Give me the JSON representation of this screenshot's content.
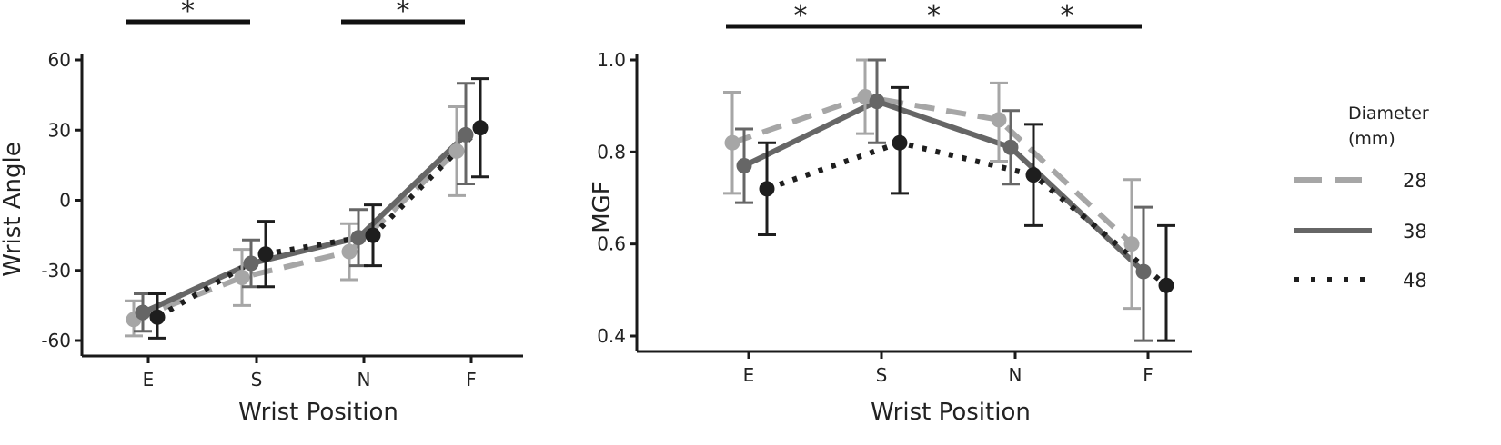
{
  "colors": {
    "28": "#a6a6a6",
    "38": "#666666",
    "48": "#1e1e1e",
    "axis": "#1a1a1a"
  },
  "legend": {
    "title_line1": "Diameter",
    "title_line2": "(mm)",
    "items": [
      {
        "label": "28",
        "line": "dashed",
        "color_key": "28"
      },
      {
        "label": "38",
        "line": "solid",
        "color_key": "38"
      },
      {
        "label": "48",
        "line": "dotted",
        "color_key": "48"
      }
    ]
  },
  "chart_data": [
    {
      "type": "line",
      "title": "",
      "xlabel": "Wrist Position",
      "ylabel": "Wrist Angle",
      "categories": [
        "E",
        "S",
        "N",
        "F"
      ],
      "ylim": [
        -60,
        60
      ],
      "yticks": [
        -60,
        -30,
        0,
        30,
        60
      ],
      "ytick_labels": [
        "-60",
        "-30",
        "0",
        "30",
        "60"
      ],
      "grid": false,
      "series": [
        {
          "name": "28",
          "line": "dashed",
          "color_key": "28",
          "values": [
            -51,
            -33,
            -22,
            21
          ],
          "err_low": [
            -58,
            -45,
            -34,
            2
          ],
          "err_high": [
            -43,
            -21,
            -10,
            40
          ]
        },
        {
          "name": "38",
          "line": "solid",
          "color_key": "38",
          "values": [
            -48,
            -27,
            -16,
            28
          ],
          "err_low": [
            -56,
            -37,
            -28,
            7
          ],
          "err_high": [
            -40,
            -17,
            -4,
            50
          ]
        },
        {
          "name": "48",
          "line": "dotted",
          "color_key": "48",
          "values": [
            -50,
            -23,
            -15,
            31
          ],
          "err_low": [
            -59,
            -37,
            -28,
            10
          ],
          "err_high": [
            -40,
            -9,
            -2,
            52
          ]
        }
      ],
      "significance": [
        {
          "from": 0,
          "to": 1,
          "label": "*"
        },
        {
          "from": 2,
          "to": 3,
          "label": "*"
        }
      ]
    },
    {
      "type": "line",
      "title": "",
      "xlabel": "Wrist Position",
      "ylabel": "MGF",
      "categories": [
        "E",
        "S",
        "N",
        "F"
      ],
      "ylim": [
        0.4,
        1.0
      ],
      "yticks": [
        0.4,
        0.6,
        0.8,
        1.0
      ],
      "ytick_labels": [
        "0.4",
        "0.6",
        "0.8",
        "1.0"
      ],
      "grid": false,
      "series": [
        {
          "name": "28",
          "line": "dashed",
          "color_key": "28",
          "values": [
            0.82,
            0.92,
            0.87,
            0.6
          ],
          "err_low": [
            0.71,
            0.84,
            0.78,
            0.46
          ],
          "err_high": [
            0.93,
            1.0,
            0.95,
            0.74
          ]
        },
        {
          "name": "38",
          "line": "solid",
          "color_key": "38",
          "values": [
            0.77,
            0.91,
            0.81,
            0.54
          ],
          "err_low": [
            0.69,
            0.82,
            0.73,
            0.39
          ],
          "err_high": [
            0.85,
            1.0,
            0.89,
            0.68
          ]
        },
        {
          "name": "48",
          "line": "dotted",
          "color_key": "48",
          "values": [
            0.72,
            0.82,
            0.75,
            0.51
          ],
          "err_low": [
            0.62,
            0.71,
            0.64,
            0.39
          ],
          "err_high": [
            0.82,
            0.94,
            0.86,
            0.64
          ]
        }
      ],
      "significance": [
        {
          "from": 0,
          "to": 1,
          "label": "*"
        },
        {
          "from": 1,
          "to": 2,
          "label": "*"
        },
        {
          "from": 2,
          "to": 3,
          "label": "*"
        }
      ]
    }
  ]
}
